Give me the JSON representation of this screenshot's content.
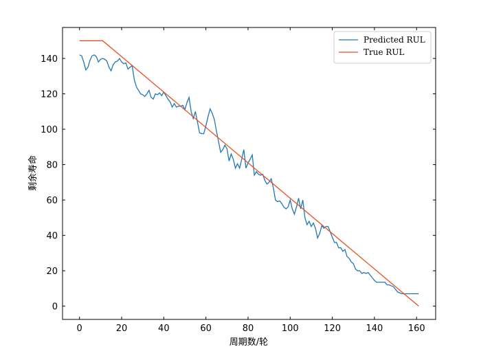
{
  "chart_data": {
    "type": "line",
    "xlabel": "周期数/轮",
    "ylabel": "剩余寿命",
    "xlim": [
      -8.05,
      169.05
    ],
    "ylim": [
      -7.5,
      157.5
    ],
    "xticks": [
      0,
      20,
      40,
      60,
      80,
      100,
      120,
      140,
      160
    ],
    "yticks": [
      0,
      20,
      40,
      60,
      80,
      100,
      120,
      140
    ],
    "legend": "upper right",
    "series": [
      {
        "name": "Predicted RUL",
        "color": "#1f77b4",
        "x": [
          0,
          1,
          2,
          3,
          4,
          5,
          6,
          7,
          8,
          9,
          10,
          11,
          12,
          13,
          14,
          15,
          16,
          17,
          18,
          19,
          20,
          21,
          22,
          23,
          24,
          25,
          26,
          27,
          28,
          29,
          30,
          31,
          32,
          33,
          34,
          35,
          36,
          37,
          38,
          39,
          40,
          41,
          42,
          43,
          44,
          45,
          46,
          47,
          48,
          49,
          50,
          51,
          52,
          53,
          54,
          55,
          56,
          57,
          58,
          59,
          60,
          61,
          62,
          63,
          64,
          65,
          66,
          67,
          68,
          69,
          70,
          71,
          72,
          73,
          74,
          75,
          76,
          77,
          78,
          79,
          80,
          81,
          82,
          83,
          84,
          85,
          86,
          87,
          88,
          89,
          90,
          91,
          92,
          93,
          94,
          95,
          96,
          97,
          98,
          99,
          100,
          101,
          102,
          103,
          104,
          105,
          106,
          107,
          108,
          109,
          110,
          111,
          112,
          113,
          114,
          115,
          116,
          117,
          118,
          119,
          120,
          121,
          122,
          123,
          124,
          125,
          126,
          127,
          128,
          129,
          130,
          131,
          132,
          133,
          134,
          135,
          136,
          137,
          138,
          139,
          140,
          141,
          142,
          143,
          144,
          145,
          146,
          147,
          148,
          149,
          150,
          151,
          152,
          153,
          154,
          155,
          156,
          157,
          158,
          159,
          160,
          161
        ],
        "values": [
          142,
          141.5,
          138,
          133.5,
          135,
          139,
          141.5,
          142,
          141,
          138,
          139.5,
          140,
          139.5,
          138.5,
          135,
          133,
          136.5,
          138,
          138.5,
          140,
          138,
          137,
          137.5,
          134,
          135,
          136,
          128,
          124,
          122,
          120,
          119.5,
          118.5,
          120,
          122,
          118,
          117,
          120,
          119.5,
          120.5,
          119,
          121,
          119,
          117,
          115.5,
          112.5,
          114.5,
          112.5,
          113,
          113,
          113.5,
          111,
          115,
          118,
          110,
          106,
          110,
          104,
          98,
          97.5,
          97.5,
          102,
          107,
          111.5,
          109,
          105.5,
          99,
          93,
          87,
          88.5,
          91,
          89,
          82,
          86,
          83,
          78,
          80.5,
          78,
          83,
          88.5,
          78,
          81,
          83,
          85.5,
          74,
          76,
          74.5,
          74,
          74.5,
          71,
          69,
          70,
          72,
          67,
          60,
          59,
          59.5,
          58,
          56,
          55,
          56,
          60,
          55,
          52,
          56,
          61,
          55,
          60,
          50,
          46,
          48,
          45,
          47,
          44,
          38.5,
          41,
          45.5,
          44,
          45,
          45,
          42,
          39,
          36,
          36,
          33,
          33,
          31,
          32,
          28,
          27,
          25,
          24,
          21,
          20,
          20,
          18.5,
          19,
          18.5,
          19,
          17.5,
          16,
          14.5,
          13.5,
          13.5,
          13.5,
          13.5,
          13.5,
          12,
          12,
          11.5,
          11,
          9.5,
          8,
          7.5,
          7,
          7,
          7,
          7,
          7,
          7,
          7,
          7,
          7
        ]
      },
      {
        "name": "True RUL",
        "color": "#e8521f",
        "x": [
          0,
          11,
          161
        ],
        "values": [
          150,
          150,
          0
        ]
      }
    ]
  }
}
